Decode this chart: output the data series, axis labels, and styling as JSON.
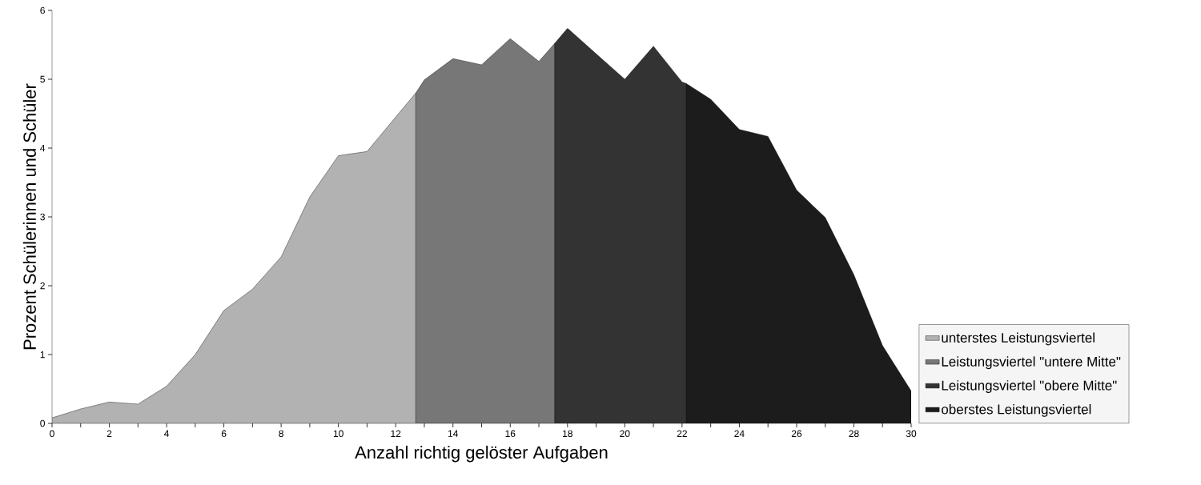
{
  "chart_data": {
    "type": "area",
    "xlabel": "Anzahl richtig gelöster Aufgaben",
    "ylabel": "Prozent Schülerinnen und Schüler",
    "series": [
      {
        "name": "unterstes Leistungsviertel",
        "color": "#b2b2b2",
        "x": [
          0,
          1,
          2,
          3,
          4,
          5,
          6,
          7,
          8,
          9,
          10,
          11,
          12,
          12.7
        ],
        "values": [
          0.08,
          0.21,
          0.31,
          0.28,
          0.54,
          1.0,
          1.64,
          1.95,
          2.42,
          3.29,
          3.89,
          3.95,
          4.45,
          4.8
        ]
      },
      {
        "name": "Leistungsviertel \"untere Mitte\"",
        "color": "#777777",
        "x": [
          12.7,
          13,
          14,
          15,
          16,
          17,
          17.55
        ],
        "values": [
          4.8,
          4.99,
          5.3,
          5.21,
          5.59,
          5.26,
          5.52
        ]
      },
      {
        "name": "Leistungsviertel \"obere Mitte\"",
        "color": "#333333",
        "x": [
          17.55,
          18,
          19,
          20,
          21,
          22,
          22.14
        ],
        "values": [
          5.52,
          5.74,
          5.37,
          5.0,
          5.48,
          4.96,
          4.94
        ]
      },
      {
        "name": "oberstes Leistungsviertel",
        "color": "#1c1c1c",
        "x": [
          22.14,
          23,
          24,
          25,
          26,
          27,
          28,
          29,
          30
        ],
        "values": [
          4.94,
          4.71,
          4.27,
          4.17,
          3.39,
          2.99,
          2.16,
          1.13,
          0.47
        ]
      }
    ],
    "xlim": [
      0,
      30
    ],
    "ylim": [
      0,
      6
    ],
    "xticks": [
      0,
      {
        "value": 1,
        "label": null
      },
      2,
      {
        "value": 3,
        "label": null
      },
      4,
      {
        "value": 5,
        "label": null
      },
      6,
      {
        "value": 7,
        "label": null
      },
      8,
      {
        "value": 9,
        "label": null
      },
      10,
      {
        "value": 11,
        "label": null
      },
      12,
      {
        "value": 13,
        "label": null
      },
      14,
      {
        "value": 15,
        "label": null
      },
      16,
      {
        "value": 17,
        "label": null
      },
      18,
      {
        "value": 19,
        "label": null
      },
      20,
      {
        "value": 21,
        "label": null
      },
      22,
      {
        "value": 23,
        "label": null
      },
      24,
      {
        "value": 25,
        "label": null
      },
      26,
      {
        "value": 27,
        "label": null
      },
      28,
      {
        "value": 29,
        "label": null
      },
      30
    ],
    "yticks": [
      0,
      1,
      2,
      3,
      4,
      5,
      6
    ],
    "legend": "right",
    "grid": false,
    "marker": "none"
  }
}
